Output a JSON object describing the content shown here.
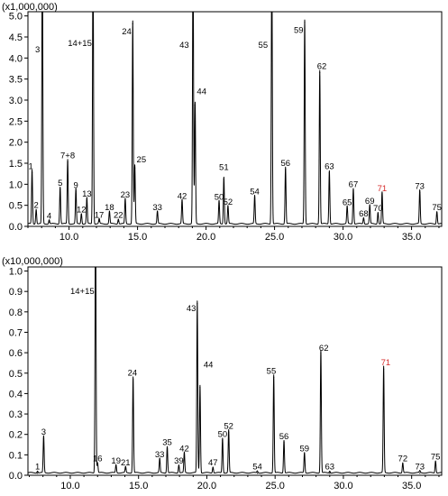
{
  "chart_data": [
    {
      "type": "line",
      "multiplier_label": "(x1,000,000)",
      "xlim": [
        7.0,
        37.2
      ],
      "ylim": [
        0,
        5.1
      ],
      "xticks": [
        10.0,
        15.0,
        20.0,
        25.0,
        30.0,
        35.0
      ],
      "xtick_labels": [
        "10.0",
        "15.0",
        "20.0",
        "25.0",
        "30.0",
        "35.0"
      ],
      "yticks": [
        0,
        0.5,
        1.0,
        1.5,
        2.0,
        2.5,
        3.0,
        3.5,
        4.0,
        4.5,
        5.0
      ],
      "ytick_labels": [
        "0.0",
        "0.5",
        "1.0",
        "1.5",
        "2.0",
        "2.5",
        "3.0",
        "3.5",
        "4.0",
        "4.5",
        "5.0"
      ],
      "peaks": [
        {
          "label": "1",
          "x": 7.3,
          "y": 1.28
        },
        {
          "label": "2",
          "x": 7.6,
          "y": 0.35
        },
        {
          "label": "3",
          "x": 8.05,
          "y": 6.5
        },
        {
          "label": "4",
          "x": 8.55,
          "y": 0.1
        },
        {
          "label": "5",
          "x": 9.35,
          "y": 0.88
        },
        {
          "label": "7+8",
          "x": 9.9,
          "y": 1.53
        },
        {
          "label": "9",
          "x": 10.5,
          "y": 0.83
        },
        {
          "label": "12",
          "x": 10.9,
          "y": 0.25
        },
        {
          "label": "13",
          "x": 11.3,
          "y": 0.62
        },
        {
          "label": "14+15",
          "x": 11.75,
          "y": 6.5
        },
        {
          "label": "17",
          "x": 12.2,
          "y": 0.12
        },
        {
          "label": "18",
          "x": 12.95,
          "y": 0.3
        },
        {
          "label": "22",
          "x": 13.6,
          "y": 0.12
        },
        {
          "label": "23",
          "x": 14.1,
          "y": 0.6
        },
        {
          "label": "24",
          "x": 14.65,
          "y": 4.82
        },
        {
          "label": "25",
          "x": 14.8,
          "y": 1.39
        },
        {
          "label": "33",
          "x": 16.45,
          "y": 0.3
        },
        {
          "label": "42",
          "x": 18.25,
          "y": 0.57
        },
        {
          "label": "43",
          "x": 19.05,
          "y": 6.5
        },
        {
          "label": "44",
          "x": 19.2,
          "y": 2.88
        },
        {
          "label": "50",
          "x": 20.95,
          "y": 0.55
        },
        {
          "label": "51",
          "x": 21.3,
          "y": 1.12
        },
        {
          "label": "52",
          "x": 21.6,
          "y": 0.43
        },
        {
          "label": "54",
          "x": 23.55,
          "y": 0.67
        },
        {
          "label": "55",
          "x": 24.8,
          "y": 6.5
        },
        {
          "label": "56",
          "x": 25.8,
          "y": 1.35
        },
        {
          "label": "59",
          "x": 27.2,
          "y": 4.85
        },
        {
          "label": "62",
          "x": 28.3,
          "y": 3.65
        },
        {
          "label": "63",
          "x": 29.0,
          "y": 1.27
        },
        {
          "label": "65",
          "x": 30.3,
          "y": 0.42
        },
        {
          "label": "67",
          "x": 30.75,
          "y": 0.85
        },
        {
          "label": "68",
          "x": 31.5,
          "y": 0.15
        },
        {
          "label": "69",
          "x": 31.95,
          "y": 0.45
        },
        {
          "label": "70",
          "x": 32.55,
          "y": 0.28
        },
        {
          "label": "71",
          "x": 32.85,
          "y": 0.75
        },
        {
          "label": "73",
          "x": 35.6,
          "y": 0.8
        },
        {
          "label": "75",
          "x": 36.85,
          "y": 0.3
        }
      ],
      "highlight_color": "#d62828",
      "highlight_labels": [
        "71"
      ]
    },
    {
      "type": "line",
      "multiplier_label": "(x10,000,000)",
      "xlim": [
        6.9,
        37.2
      ],
      "ylim": [
        0,
        1.02
      ],
      "xticks": [
        10.0,
        15.0,
        20.0,
        25.0,
        30.0,
        35.0
      ],
      "xtick_labels": [
        "10.0",
        "15.0",
        "20.0",
        "25.0",
        "30.0",
        "35.0"
      ],
      "yticks": [
        0,
        0.1,
        0.2,
        0.3,
        0.4,
        0.5,
        0.6,
        0.7,
        0.8,
        0.9,
        1.0
      ],
      "ytick_labels": [
        "0.0",
        "0.1",
        "0.2",
        "0.3",
        "0.4",
        "0.5",
        "0.6",
        "0.7",
        "0.8",
        "0.9",
        "1.0"
      ],
      "peaks": [
        {
          "label": "1",
          "x": 7.6,
          "y": 0.01
        },
        {
          "label": "3",
          "x": 8.05,
          "y": 0.18
        },
        {
          "label": "16",
          "x": 12.0,
          "y": 0.05
        },
        {
          "label": "14+15",
          "x": 11.85,
          "y": 1.3
        },
        {
          "label": "19",
          "x": 13.35,
          "y": 0.04
        },
        {
          "label": "21",
          "x": 14.05,
          "y": 0.03
        },
        {
          "label": "24",
          "x": 14.6,
          "y": 0.47
        },
        {
          "label": "33",
          "x": 16.55,
          "y": 0.07
        },
        {
          "label": "35",
          "x": 17.1,
          "y": 0.13
        },
        {
          "label": "39",
          "x": 17.95,
          "y": 0.04
        },
        {
          "label": "42",
          "x": 18.35,
          "y": 0.1
        },
        {
          "label": "43",
          "x": 19.3,
          "y": 0.84
        },
        {
          "label": "44",
          "x": 19.5,
          "y": 0.43
        },
        {
          "label": "47",
          "x": 20.45,
          "y": 0.03
        },
        {
          "label": "50",
          "x": 21.15,
          "y": 0.17
        },
        {
          "label": "52",
          "x": 21.6,
          "y": 0.21
        },
        {
          "label": "54",
          "x": 23.7,
          "y": 0.01
        },
        {
          "label": "55",
          "x": 24.9,
          "y": 0.48
        },
        {
          "label": "56",
          "x": 25.65,
          "y": 0.16
        },
        {
          "label": "59",
          "x": 27.15,
          "y": 0.1
        },
        {
          "label": "62",
          "x": 28.35,
          "y": 0.6
        },
        {
          "label": "63",
          "x": 29.0,
          "y": 0.01
        },
        {
          "label": "71",
          "x": 32.95,
          "y": 0.52
        },
        {
          "label": "72",
          "x": 34.35,
          "y": 0.05
        },
        {
          "label": "73",
          "x": 35.6,
          "y": 0.01
        },
        {
          "label": "75",
          "x": 36.75,
          "y": 0.06
        }
      ],
      "highlight_color": "#d62828",
      "highlight_labels": [
        "71"
      ]
    }
  ]
}
